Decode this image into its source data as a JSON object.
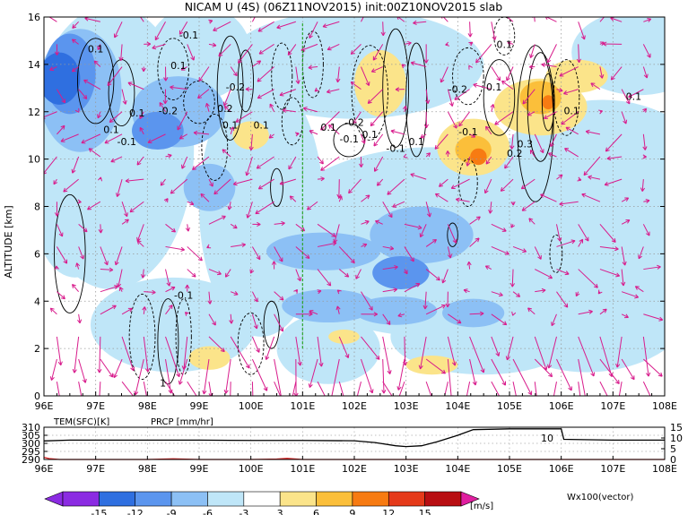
{
  "title": "NICAM U (4S) (06Z11NOV2015) init:00Z10NOV2015 slab",
  "colors": {
    "shade_neg15": "#8b2be2",
    "shade_neg12": "#2f6fe0",
    "shade_neg9": "#5b95ee",
    "shade_neg6": "#8cc0f5",
    "shade_neg3": "#bfe6f8",
    "shade_pos3": "#fbe48a",
    "shade_pos6": "#fbbf3a",
    "shade_pos9": "#f77b12",
    "shade_pos12": "#e53a1a",
    "shade_pos15": "#b80e12",
    "shade_max": "#e01fa0",
    "vector": "#d81c8c",
    "marker_line": "#2aa52a",
    "temp_line": "#000000",
    "prcp_line": "#e02020"
  },
  "chart_data": [
    {
      "type": "heatmap",
      "name": "cross-section",
      "x_ticks": [
        "96E",
        "97E",
        "98E",
        "99E",
        "100E",
        "101E",
        "102E",
        "103E",
        "104E",
        "105E",
        "106E",
        "107E",
        "108E"
      ],
      "x_range": [
        96,
        108
      ],
      "ylabel": "ALTITUDE [km]",
      "y_ticks": [
        "0",
        "2",
        "4",
        "6",
        "8",
        "10",
        "12",
        "14",
        "16"
      ],
      "ylim": [
        0,
        16
      ],
      "grid": true,
      "marker_lon": 101,
      "contour_labels": [
        {
          "text": "0.1",
          "lon": 97.0,
          "alt": 14.5
        },
        {
          "text": "-0.1",
          "lon": 98.8,
          "alt": 15.1
        },
        {
          "text": "0.1",
          "lon": 98.6,
          "alt": 13.8
        },
        {
          "text": "-0.2",
          "lon": 99.7,
          "alt": 12.9
        },
        {
          "text": "-0.2",
          "lon": 98.4,
          "alt": 11.9
        },
        {
          "text": "0.2",
          "lon": 99.5,
          "alt": 12.0
        },
        {
          "text": "0.1",
          "lon": 97.8,
          "alt": 11.8
        },
        {
          "text": "0.1",
          "lon": 99.6,
          "alt": 11.3
        },
        {
          "text": "0.1",
          "lon": 100.2,
          "alt": 11.3
        },
        {
          "text": "0.1",
          "lon": 97.3,
          "alt": 11.1
        },
        {
          "text": "-0.1",
          "lon": 97.6,
          "alt": 10.6
        },
        {
          "text": "-0.2",
          "lon": 102.0,
          "alt": 11.4
        },
        {
          "text": "0.1",
          "lon": 101.5,
          "alt": 11.2
        },
        {
          "text": "-0.1",
          "lon": 101.9,
          "alt": 10.7
        },
        {
          "text": "0.1",
          "lon": 102.3,
          "alt": 10.9
        },
        {
          "text": "-0.1",
          "lon": 102.8,
          "alt": 10.3
        },
        {
          "text": "0.1",
          "lon": 103.2,
          "alt": 10.6
        },
        {
          "text": "-0.2",
          "lon": 104.0,
          "alt": 12.8
        },
        {
          "text": "0.1",
          "lon": 104.7,
          "alt": 12.9
        },
        {
          "text": "-0.1",
          "lon": 104.2,
          "alt": 11.0
        },
        {
          "text": "0.1",
          "lon": 104.9,
          "alt": 14.7
        },
        {
          "text": "0.1",
          "lon": 106.2,
          "alt": 11.9
        },
        {
          "text": "0.1",
          "lon": 107.4,
          "alt": 12.5
        },
        {
          "text": "0.3",
          "lon": 105.3,
          "alt": 10.5
        },
        {
          "text": "0.2",
          "lon": 105.1,
          "alt": 10.1
        },
        {
          "text": "-0.1",
          "lon": 98.7,
          "alt": 4.1
        },
        {
          "text": "1",
          "lon": 98.3,
          "alt": 0.4
        }
      ]
    },
    {
      "type": "line",
      "name": "surface",
      "series": [
        {
          "name": "TEM(SFC)[K]",
          "color": "#000000"
        },
        {
          "name": "PRCP [mm/hr]",
          "color": "#e02020"
        }
      ],
      "x_ticks": [
        "96E",
        "97E",
        "98E",
        "99E",
        "100E",
        "101E",
        "102E",
        "103E",
        "104E",
        "105E",
        "106E",
        "107E",
        "108E"
      ],
      "left_ticks": [
        "310",
        "305",
        "300",
        "295",
        "290"
      ],
      "left_range": [
        290,
        310
      ],
      "right_ticks": [
        "15",
        "10",
        "5",
        "0"
      ],
      "right_range": [
        0,
        15
      ],
      "x": [
        96.0,
        96.5,
        97.0,
        98.0,
        99.0,
        100.0,
        101.0,
        102.0,
        102.4,
        102.8,
        103.0,
        103.3,
        103.6,
        104.0,
        104.3,
        105.0,
        105.9,
        106.0,
        106.05,
        107.0,
        108.0
      ],
      "tem": [
        301.5,
        302.0,
        302.0,
        302.0,
        302.0,
        301.8,
        301.8,
        301.6,
        300.5,
        298.5,
        298.0,
        298.5,
        301.0,
        305.0,
        308.5,
        309.0,
        309.0,
        309.0,
        302.5,
        302.0,
        302.0
      ],
      "prcp_x": [
        96.0,
        96.1,
        96.3,
        97.0,
        98.0,
        98.5,
        99.0,
        100.0,
        100.5,
        100.7,
        101.0,
        102.0,
        104.0,
        106.0,
        108.0
      ],
      "prcp": [
        1.0,
        0.4,
        0.0,
        0.0,
        0.0,
        0.3,
        0.0,
        0.0,
        0.2,
        0.5,
        0.0,
        0.0,
        0.0,
        0.0,
        0.0
      ],
      "annotation": {
        "text": "10",
        "lon": 105.85,
        "value": 10
      }
    }
  ],
  "colorbar": {
    "ticks": [
      "-15",
      "-12",
      "-9",
      "-6",
      "-3",
      "3",
      "6",
      "9",
      "12",
      "15"
    ],
    "unit": "[m/s]",
    "vector_label": "Wx100(vector)"
  }
}
